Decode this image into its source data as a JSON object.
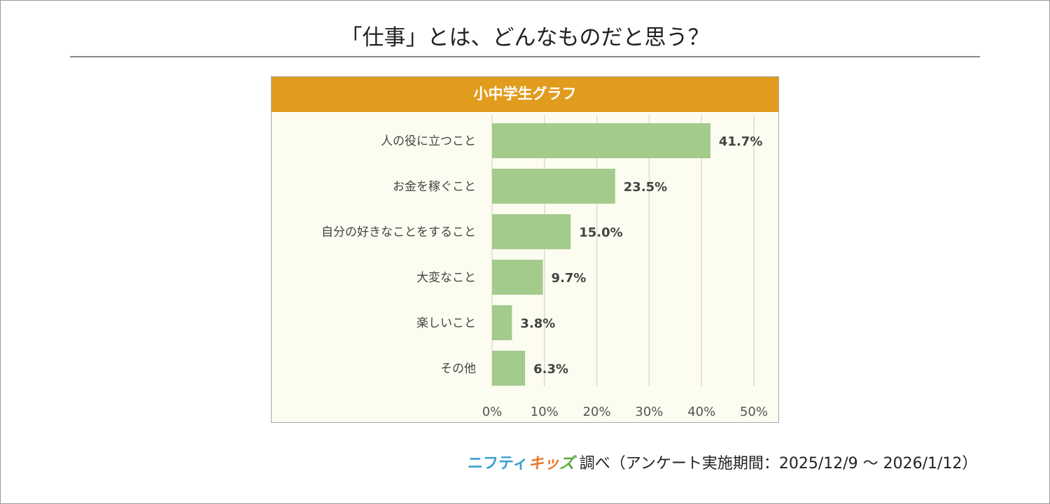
{
  "page": {
    "title": "「仕事」とは、どんなものだと思う？"
  },
  "chart_data": {
    "type": "bar",
    "orientation": "horizontal",
    "title": "小中学生グラフ",
    "categories": [
      "人の役に立つこと",
      "お金を稼ぐこと",
      "自分の好きなことをすること",
      "大変なこと",
      "楽しいこと",
      "その他"
    ],
    "values": [
      41.7,
      23.5,
      15.0,
      9.7,
      3.8,
      6.3
    ],
    "value_labels": [
      "41.7%",
      "23.5%",
      "15.0%",
      "9.7%",
      "3.8%",
      "6.3%"
    ],
    "xlim": [
      0,
      50
    ],
    "xticks": [
      0,
      10,
      20,
      30,
      40,
      50
    ],
    "xtick_labels": [
      "0%",
      "10%",
      "20%",
      "30%",
      "40%",
      "50%"
    ],
    "grid": true,
    "colors": {
      "bar": "#a3cb8c",
      "header": "#e19c1e"
    }
  },
  "footer": {
    "logo_part1": "ニフティ",
    "logo_part2": "キッ",
    "logo_part3": "ズ",
    "text": "調べ（アンケート実施期間：2025/12/9 ～ 2026/1/12）"
  }
}
